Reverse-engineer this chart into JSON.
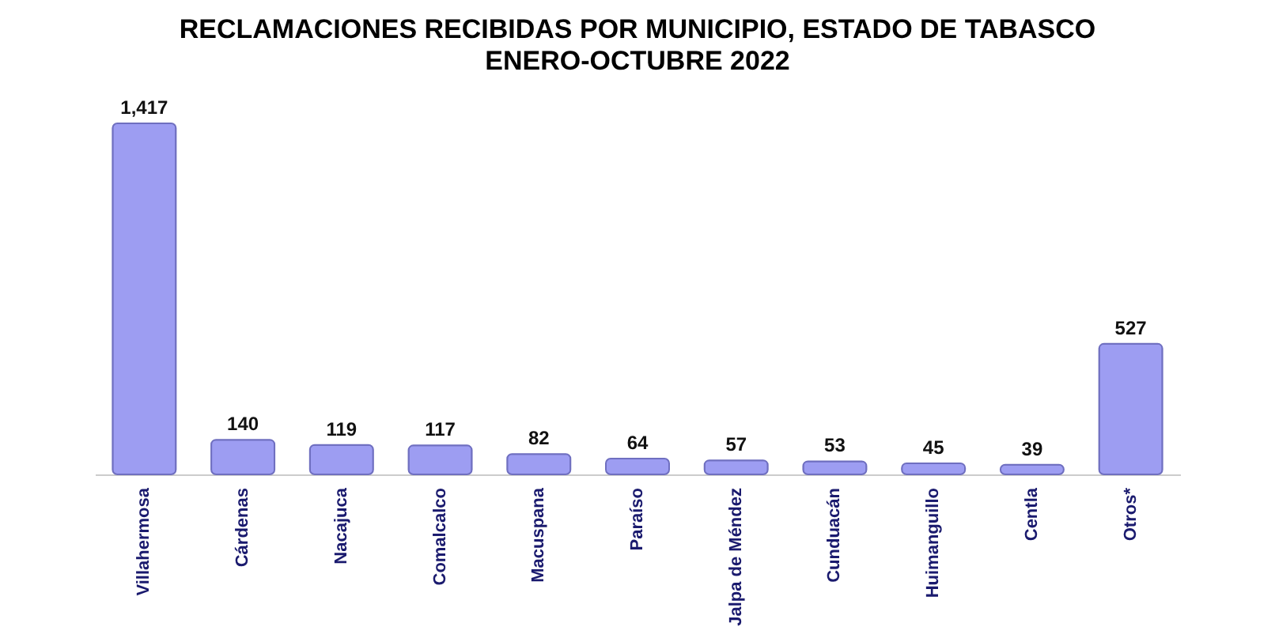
{
  "chart_data": {
    "type": "bar",
    "title": "RECLAMACIONES RECIBIDAS POR MUNICIPIO, ESTADO DE TABASCO",
    "subtitle": "ENERO-OCTUBRE 2022",
    "categories": [
      "Villahermosa",
      "Cárdenas",
      "Nacajuca",
      "Comalcalco",
      "Macuspana",
      "Paraíso",
      "Jalpa de Méndez",
      "Cunduacán",
      "Huimanguillo",
      "Centla",
      "Otros*"
    ],
    "values": [
      1417,
      140,
      119,
      117,
      82,
      64,
      57,
      53,
      45,
      39,
      527
    ],
    "value_labels": [
      "1,417",
      "140",
      "119",
      "117",
      "82",
      "64",
      "57",
      "53",
      "45",
      "39",
      "527"
    ],
    "color": "#9d9df2"
  }
}
